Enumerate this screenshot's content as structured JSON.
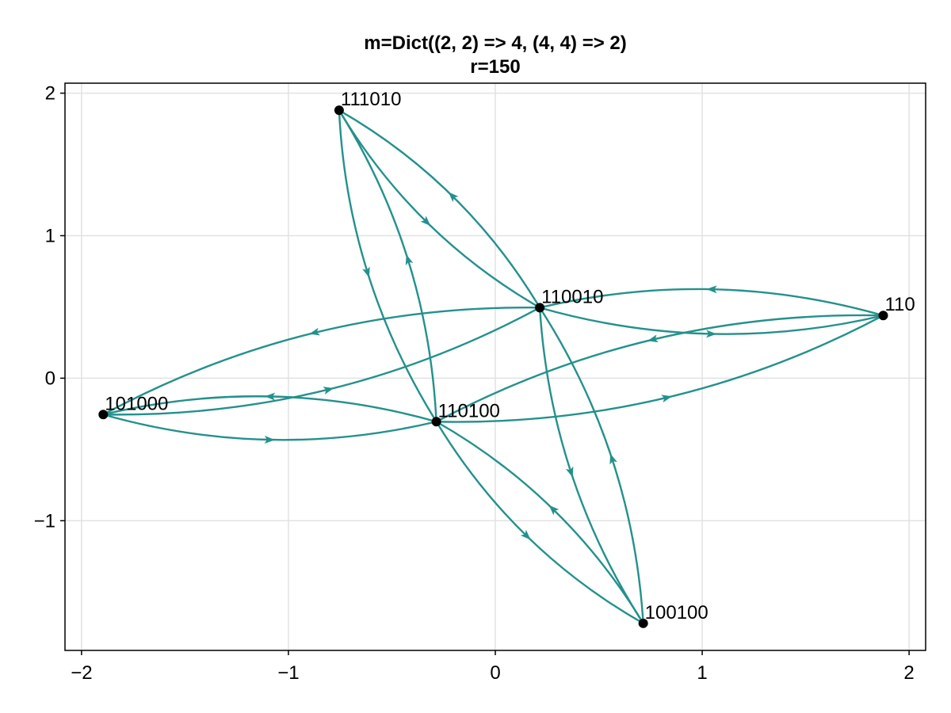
{
  "chart_data": {
    "type": "graph",
    "title": [
      "m=Dict((2, 2) => 4, (4, 4) => 2)",
      "r=150"
    ],
    "xlim": [
      -2.08,
      2.08
    ],
    "ylim": [
      -1.91,
      2.07
    ],
    "xticks": [
      -2,
      -1,
      0,
      1,
      2
    ],
    "yticks": [
      -1,
      0,
      1,
      2
    ],
    "grid": true,
    "edge_color": "#23918c",
    "node_color": "#000000",
    "nodes": [
      {
        "id": "111010",
        "label": "111010",
        "x": -0.755,
        "y": 1.88
      },
      {
        "id": "110010",
        "label": "110010",
        "x": 0.215,
        "y": 0.495
      },
      {
        "id": "110",
        "label": "110",
        "x": 1.875,
        "y": 0.44
      },
      {
        "id": "101000",
        "label": "101000",
        "x": -1.895,
        "y": -0.255
      },
      {
        "id": "110100",
        "label": "110100",
        "x": -0.285,
        "y": -0.305
      },
      {
        "id": "100100",
        "label": "100100",
        "x": 0.715,
        "y": -1.72
      }
    ],
    "edges": [
      {
        "from": "111010",
        "to": "110010"
      },
      {
        "from": "110010",
        "to": "111010"
      },
      {
        "from": "111010",
        "to": "110100"
      },
      {
        "from": "110100",
        "to": "111010"
      },
      {
        "from": "110010",
        "to": "110"
      },
      {
        "from": "110",
        "to": "110010"
      },
      {
        "from": "101000",
        "to": "110010"
      },
      {
        "from": "110010",
        "to": "101000"
      },
      {
        "from": "110010",
        "to": "100100"
      },
      {
        "from": "100100",
        "to": "110010"
      },
      {
        "from": "101000",
        "to": "110100"
      },
      {
        "from": "110100",
        "to": "101000"
      },
      {
        "from": "110100",
        "to": "110"
      },
      {
        "from": "110",
        "to": "110100"
      },
      {
        "from": "110100",
        "to": "100100"
      },
      {
        "from": "100100",
        "to": "110100"
      }
    ]
  }
}
